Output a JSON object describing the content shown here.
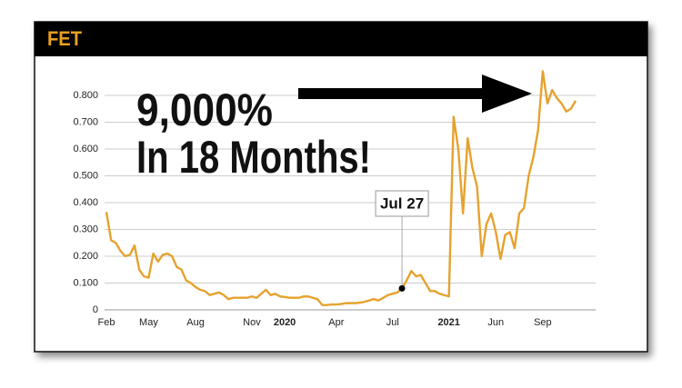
{
  "chart_data": {
    "type": "line",
    "title": "FET",
    "annotations": [
      "9,000%",
      "In 18 Months!"
    ],
    "callout": {
      "label": "Jul 27",
      "point": 63
    },
    "color": "#e6a22e",
    "grid": true,
    "ylim": [
      0,
      0.9
    ],
    "yticks": [
      0,
      {
        "value": 0.1,
        "label": "0.100"
      },
      {
        "value": 0.2,
        "label": "0.200"
      },
      {
        "value": 0.3,
        "label": "0.300"
      },
      {
        "value": 0.4,
        "label": "0.400"
      },
      {
        "value": 0.5,
        "label": "0.500"
      },
      {
        "value": 0.6,
        "label": "0.600"
      },
      {
        "value": 0.7,
        "label": "0.700"
      },
      {
        "value": 0.8,
        "label": "0.800"
      }
    ],
    "categories": [
      "Feb",
      null,
      null,
      null,
      null,
      null,
      null,
      null,
      null,
      "May",
      null,
      null,
      null,
      null,
      null,
      null,
      null,
      null,
      null,
      "Aug",
      null,
      null,
      null,
      null,
      null,
      null,
      null,
      null,
      null,
      null,
      null,
      "Nov",
      null,
      null,
      null,
      null,
      null,
      null,
      "2020",
      null,
      null,
      null,
      null,
      null,
      null,
      null,
      null,
      null,
      null,
      "Apr",
      null,
      null,
      null,
      null,
      null,
      null,
      null,
      null,
      null,
      null,
      null,
      "Jul",
      null,
      null,
      null,
      null,
      null,
      null,
      null,
      null,
      null,
      null,
      null,
      "2021",
      null,
      null,
      null,
      null,
      null,
      null,
      null,
      null,
      null,
      "Jun",
      null,
      null,
      null,
      null,
      null,
      null,
      null,
      null,
      null,
      "Sep",
      null,
      null,
      null,
      null,
      null,
      null,
      null
    ],
    "values": [
      0.365,
      0.26,
      0.25,
      0.22,
      0.2,
      0.205,
      0.24,
      0.15,
      0.125,
      0.12,
      0.21,
      0.18,
      0.205,
      0.21,
      0.2,
      0.16,
      0.15,
      0.11,
      0.1,
      0.085,
      0.075,
      0.07,
      0.055,
      0.06,
      0.065,
      0.055,
      0.04,
      0.045,
      0.045,
      0.045,
      0.045,
      0.05,
      0.045,
      0.06,
      0.075,
      0.055,
      0.06,
      0.05,
      0.048,
      0.045,
      0.045,
      0.045,
      0.05,
      0.05,
      0.045,
      0.04,
      0.018,
      0.018,
      0.02,
      0.02,
      0.022,
      0.025,
      0.025,
      0.025,
      0.027,
      0.03,
      0.035,
      0.04,
      0.035,
      0.045,
      0.055,
      0.06,
      0.065,
      0.08,
      0.11,
      0.145,
      0.125,
      0.13,
      0.1,
      0.07,
      0.07,
      0.06,
      0.055,
      0.05,
      0.72,
      0.6,
      0.36,
      0.64,
      0.53,
      0.46,
      0.2,
      0.32,
      0.36,
      0.29,
      0.19,
      0.28,
      0.29,
      0.23,
      0.36,
      0.38,
      0.5,
      0.57,
      0.67,
      0.89,
      0.77,
      0.82,
      0.79,
      0.77,
      0.74,
      0.75,
      0.78
    ]
  }
}
